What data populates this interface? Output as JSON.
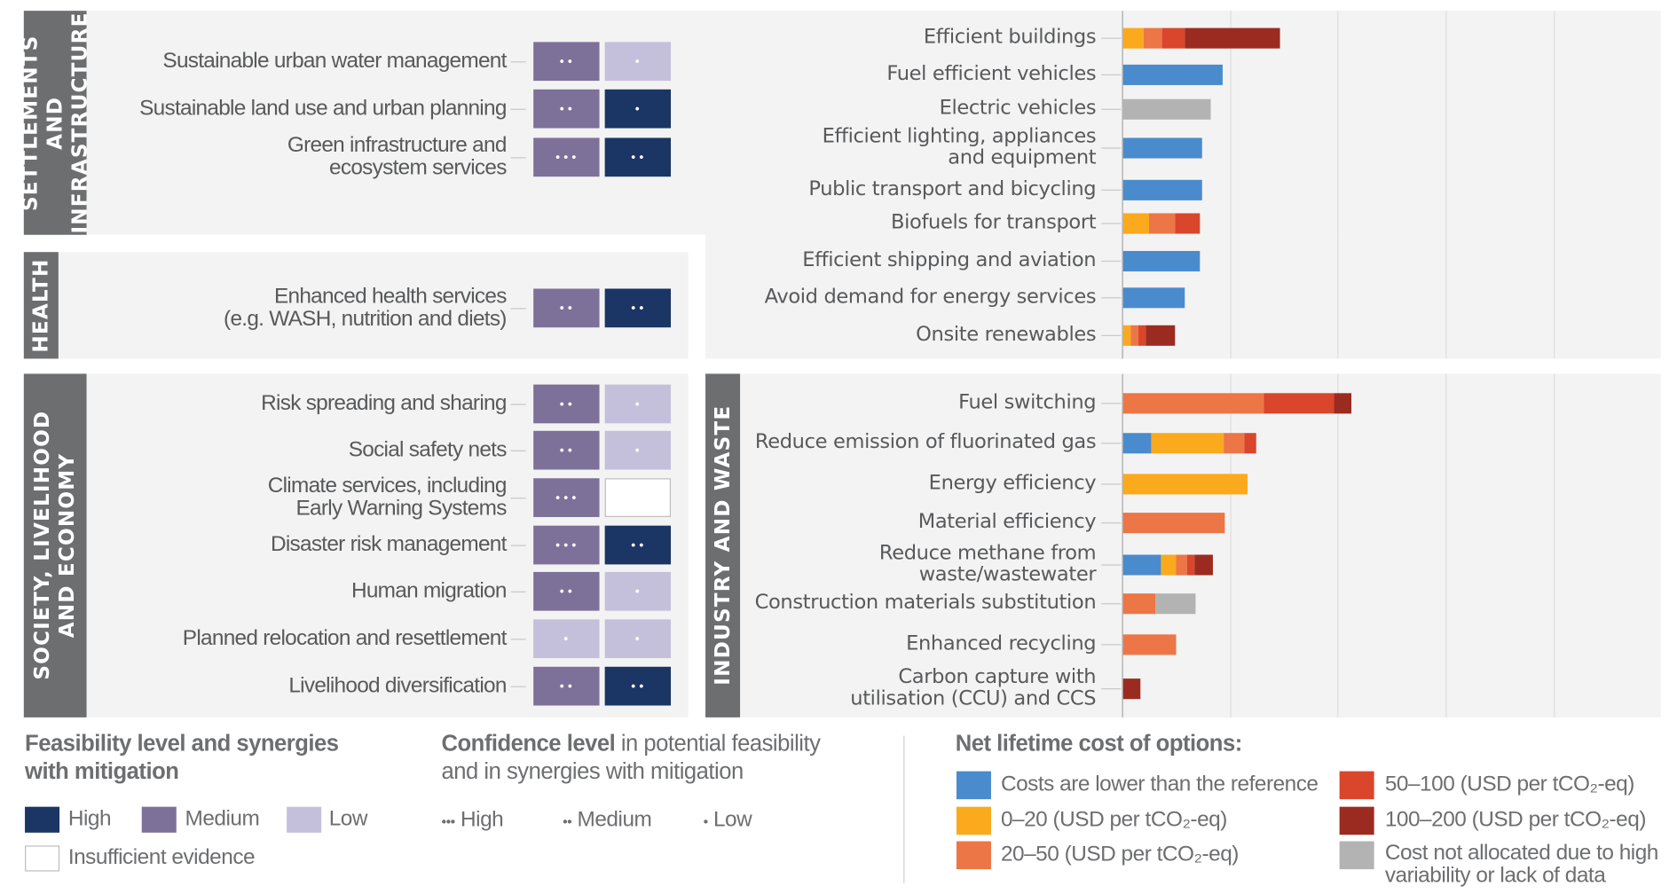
{
  "colors": {
    "feasibility_high": "#1b3564",
    "feasibility_medium": "#7d7199",
    "feasibility_low": "#c4c0dc",
    "insufficient": "#ffffff",
    "cost_lower": "#4a8bcd",
    "cost_0_20": "#fba91d",
    "cost_20_50": "#ec7646",
    "cost_50_100": "#d9462b",
    "cost_100_200": "#9b2b20",
    "cost_not_allocated": "#b3b3b3",
    "section_bar": "#6d6e70"
  },
  "sections": {
    "settlements": "SETTLEMENTS AND\nINFRASTRUCTURE",
    "health": "HEALTH",
    "society": "SOCIETY, LIVELIHOOD\nAND ECONOMY",
    "industry": "INDUSTRY AND WASTE"
  },
  "adaptation_options": [
    {
      "section": "settlements",
      "label": "Sustainable urban water management",
      "feasibility": "medium",
      "feasibility_conf": "••",
      "synergy": "low",
      "synergy_conf": "•"
    },
    {
      "section": "settlements",
      "label": "Sustainable land use and urban planning",
      "feasibility": "medium",
      "feasibility_conf": "••",
      "synergy": "high",
      "synergy_conf": "•"
    },
    {
      "section": "settlements",
      "label": "Green infrastructure and\necosystem services",
      "feasibility": "medium",
      "feasibility_conf": "•••",
      "synergy": "high",
      "synergy_conf": "••"
    },
    {
      "section": "health",
      "label": "Enhanced health services\n(e.g. WASH, nutrition and diets)",
      "feasibility": "medium",
      "feasibility_conf": "••",
      "synergy": "high",
      "synergy_conf": "••"
    },
    {
      "section": "society",
      "label": "Risk spreading and sharing",
      "feasibility": "medium",
      "feasibility_conf": "••",
      "synergy": "low",
      "synergy_conf": "•"
    },
    {
      "section": "society",
      "label": "Social safety nets",
      "feasibility": "medium",
      "feasibility_conf": "••",
      "synergy": "low",
      "synergy_conf": "•"
    },
    {
      "section": "society",
      "label": "Climate services, including\nEarly Warning Systems",
      "feasibility": "medium",
      "feasibility_conf": "•••",
      "synergy": "insufficient",
      "synergy_conf": ""
    },
    {
      "section": "society",
      "label": "Disaster risk management",
      "feasibility": "medium",
      "feasibility_conf": "•••",
      "synergy": "high",
      "synergy_conf": "••"
    },
    {
      "section": "society",
      "label": "Human migration",
      "feasibility": "medium",
      "feasibility_conf": "••",
      "synergy": "low",
      "synergy_conf": "•"
    },
    {
      "section": "society",
      "label": "Planned relocation and resettlement",
      "feasibility": "low",
      "feasibility_conf": "•",
      "synergy": "low",
      "synergy_conf": "•"
    },
    {
      "section": "society",
      "label": "Livelihood diversification",
      "feasibility": "medium",
      "feasibility_conf": "••",
      "synergy": "high",
      "synergy_conf": "••"
    }
  ],
  "chart_data": {
    "type": "bar",
    "orientation": "horizontal-stacked",
    "xlabel": "",
    "ylabel": "",
    "units": "relative mitigation potential (grid units)",
    "xlim": [
      0,
      5
    ],
    "grid": true,
    "cost_categories": [
      "cost_lower",
      "cost_0_20",
      "cost_20_50",
      "cost_50_100",
      "cost_100_200",
      "cost_not_allocated"
    ],
    "groups": [
      {
        "section": "settlements",
        "options": [
          {
            "label": "Efficient buildings",
            "segments": [
              [
                "cost_0_20",
                0.19
              ],
              [
                "cost_20_50",
                0.17
              ],
              [
                "cost_50_100",
                0.21
              ],
              [
                "cost_100_200",
                0.88
              ]
            ]
          },
          {
            "label": "Fuel efficient vehicles",
            "segments": [
              [
                "cost_lower",
                0.92
              ]
            ]
          },
          {
            "label": "Electric vehicles",
            "segments": [
              [
                "cost_not_allocated",
                0.81
              ]
            ]
          },
          {
            "label": "Efficient lighting, appliances\nand equipment",
            "segments": [
              [
                "cost_lower",
                0.73
              ]
            ]
          },
          {
            "label": "Public transport and bicycling",
            "segments": [
              [
                "cost_lower",
                0.73
              ]
            ]
          },
          {
            "label": "Biofuels for transport",
            "segments": [
              [
                "cost_0_20",
                0.245
              ],
              [
                "cost_20_50",
                0.24
              ],
              [
                "cost_50_100",
                0.23
              ]
            ]
          },
          {
            "label": "Efficient shipping and aviation",
            "segments": [
              [
                "cost_lower",
                0.71
              ]
            ]
          },
          {
            "label": "Avoid demand for energy services",
            "segments": [
              [
                "cost_lower",
                0.57
              ]
            ]
          },
          {
            "label": "Onsite renewables",
            "segments": [
              [
                "cost_0_20",
                0.07
              ],
              [
                "cost_20_50",
                0.07
              ],
              [
                "cost_50_100",
                0.07
              ],
              [
                "cost_100_200",
                0.27
              ]
            ]
          }
        ]
      },
      {
        "section": "industry",
        "options": [
          {
            "label": "Fuel switching",
            "segments": [
              [
                "cost_20_50",
                1.3
              ],
              [
                "cost_50_100",
                0.655
              ],
              [
                "cost_100_200",
                0.16
              ]
            ]
          },
          {
            "label": "Reduce emission of fluorinated gas",
            "segments": [
              [
                "cost_lower",
                0.26
              ],
              [
                "cost_0_20",
                0.67
              ],
              [
                "cost_20_50",
                0.19
              ],
              [
                "cost_50_100",
                0.11
              ]
            ]
          },
          {
            "label": "Energy efficiency",
            "segments": [
              [
                "cost_0_20",
                1.15
              ]
            ]
          },
          {
            "label": "Material efficiency",
            "segments": [
              [
                "cost_20_50",
                0.945
              ]
            ]
          },
          {
            "label": "Reduce methane from\nwaste/wastewater",
            "segments": [
              [
                "cost_lower",
                0.35
              ],
              [
                "cost_0_20",
                0.14
              ],
              [
                "cost_20_50",
                0.1
              ],
              [
                "cost_50_100",
                0.07
              ],
              [
                "cost_100_200",
                0.17
              ]
            ]
          },
          {
            "label": "Construction materials substitution",
            "segments": [
              [
                "cost_20_50",
                0.3
              ],
              [
                "cost_not_allocated",
                0.37
              ]
            ]
          },
          {
            "label": "Enhanced recycling",
            "segments": [
              [
                "cost_20_50",
                0.49
              ]
            ]
          },
          {
            "label": "Carbon capture with\nutilisation (CCU) and CCS",
            "segments": [
              [
                "cost_100_200",
                0.165
              ]
            ]
          }
        ]
      }
    ]
  },
  "legend": {
    "feasibility": {
      "title": "Feasibility level and synergies\nwith mitigation",
      "high": "High",
      "medium": "Medium",
      "low": "Low",
      "insufficient": "Insufficient evidence"
    },
    "confidence": {
      "title_bold": "Confidence level",
      "title_rest": " in potential feasibility\nand in synergies with mitigation",
      "high_dots": "•••",
      "high": "High",
      "medium_dots": "••",
      "medium": "Medium",
      "low_dots": "•",
      "low": "Low"
    },
    "cost": {
      "title": "Net lifetime cost of options:",
      "cost_lower": "Costs are lower than the reference",
      "cost_0_20": "0–20 (USD per tCO₂-eq)",
      "cost_20_50": "20–50 (USD per tCO₂-eq)",
      "cost_50_100": "50–100 (USD per tCO₂-eq)",
      "cost_100_200": "100–200 (USD per tCO₂-eq)",
      "cost_not_allocated": "Cost not allocated due to high\nvariability or lack of data"
    }
  }
}
